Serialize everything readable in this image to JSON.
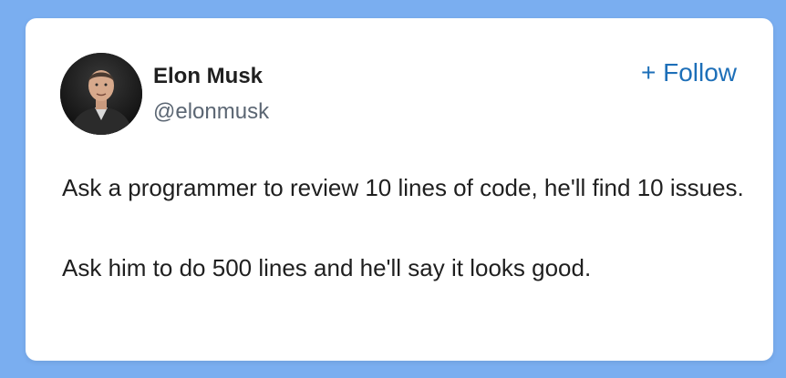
{
  "post": {
    "author": {
      "name": "Elon Musk",
      "handle": "@elonmusk",
      "avatar": "profile-photo"
    },
    "follow_label": "+ Follow",
    "text_lines": [
      "Ask a programmer to review 10 lines of code, he'll find 10 issues.",
      "Ask him to do 500 lines and he'll say it looks good."
    ]
  },
  "colors": {
    "background": "#7aaef0",
    "card": "#ffffff",
    "follow_text": "#1d6fb8",
    "handle_text": "#5b6673",
    "body_text": "#1f1f1f"
  }
}
